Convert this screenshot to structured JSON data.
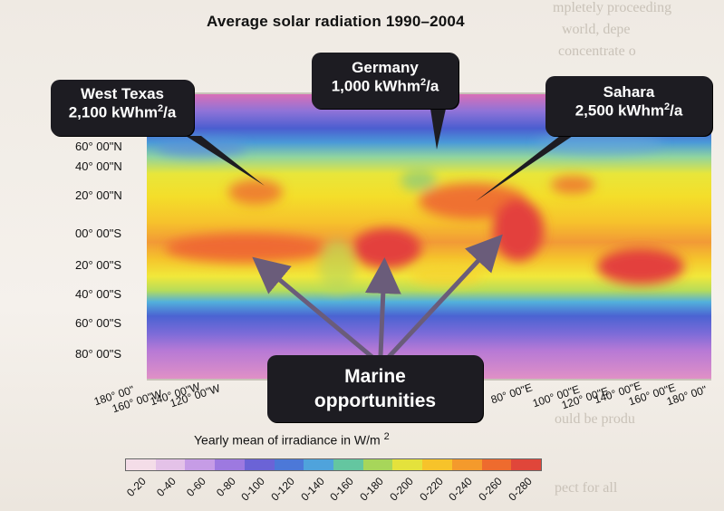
{
  "map": {
    "title": "Average solar radiation 1990–2004",
    "legend_title": "Yearly mean of irradiance in W/m",
    "legend_superscript": "2",
    "lat_labels": [
      "60° 00\"N",
      "40° 00\"N",
      "20° 00\"N",
      "00° 00\"S",
      "20° 00\"S",
      "40° 00\"S",
      "60° 00\"S",
      "80° 00\"S"
    ],
    "lon_labels": [
      "180° 00\"",
      "160° 00\"W",
      "140° 00\"W",
      "120° 00\"W",
      "80° 00\"E",
      "100° 00\"E",
      "120° 00\"E",
      "140° 00\"E",
      "160° 00\"E",
      "180° 00\""
    ],
    "legend_ticks": [
      "0-20",
      "0-40",
      "0-60",
      "0-80",
      "0-100",
      "0-120",
      "0-140",
      "0-160",
      "0-180",
      "0-200",
      "0-220",
      "0-240",
      "0-260",
      "0-280"
    ],
    "legend_colors": [
      "#f4dde8",
      "#e4c2e8",
      "#c69ce6",
      "#9d79e0",
      "#6b63d6",
      "#4c78d8",
      "#4fa3dc",
      "#64c6a0",
      "#a7d65a",
      "#e4e23c",
      "#f7c32a",
      "#f49a2c",
      "#ee6b2e",
      "#e0463a"
    ]
  },
  "callouts": {
    "west_texas": {
      "name": "West Texas",
      "value": "2,100 kWhm",
      "sup": "2",
      "unit": "/a"
    },
    "germany": {
      "name": "Germany",
      "value": "1,000 kWhm",
      "sup": "2",
      "unit": "/a"
    },
    "sahara": {
      "name": "Sahara",
      "value": "2,500 kWhm",
      "sup": "2",
      "unit": "/a"
    },
    "marine": {
      "line1": "Marine",
      "line2": "opportunities"
    }
  }
}
